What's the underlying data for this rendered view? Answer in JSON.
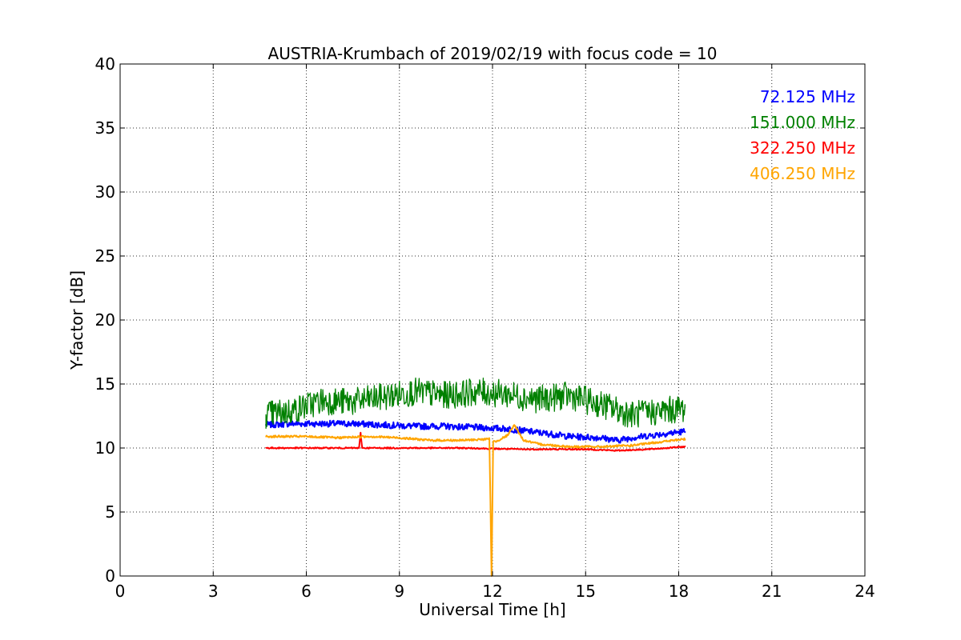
{
  "chart_data": {
    "type": "line",
    "title": "AUSTRIA-Krumbach of 2019/02/19 with focus code = 10",
    "xlabel": "Universal Time [h]",
    "ylabel": "Y-factor [dB]",
    "xlim": [
      0,
      24
    ],
    "ylim": [
      0,
      40
    ],
    "xticks": [
      "0",
      "3",
      "6",
      "9",
      "12",
      "15",
      "18",
      "21",
      "24"
    ],
    "yticks": [
      "0",
      "5",
      "10",
      "15",
      "20",
      "25",
      "30",
      "35",
      "40"
    ],
    "grid": true,
    "legend_position": "top-right",
    "series": [
      {
        "name": "72.125 MHz",
        "color": "#0000ff",
        "x": [
          4.7,
          5.5,
          6.5,
          7.5,
          8.5,
          9.5,
          10.5,
          11.5,
          12.5,
          13.5,
          14.5,
          15.5,
          16.0,
          16.5,
          17.5,
          18.2
        ],
        "values": [
          11.8,
          11.9,
          11.9,
          11.9,
          11.8,
          11.7,
          11.7,
          11.6,
          11.5,
          11.2,
          10.9,
          10.8,
          10.6,
          10.8,
          11.1,
          11.3
        ],
        "noise": 0.25
      },
      {
        "name": "151.000 MHz",
        "color": "#008000",
        "x": [
          4.7,
          5.5,
          6.5,
          7.5,
          8.5,
          9.5,
          10.5,
          11.5,
          12.5,
          13.5,
          14.5,
          15.5,
          16.5,
          17.5,
          18.2
        ],
        "values": [
          12.6,
          12.9,
          13.7,
          13.6,
          14.0,
          14.4,
          14.1,
          14.4,
          14.2,
          13.8,
          14.1,
          13.4,
          12.6,
          12.9,
          13.1
        ],
        "noise": 1.1
      },
      {
        "name": "322.250 MHz",
        "color": "#ff0000",
        "x": [
          4.7,
          6.0,
          7.7,
          7.75,
          7.8,
          9.0,
          11.0,
          13.0,
          15.0,
          16.0,
          17.0,
          18.2
        ],
        "values": [
          10.0,
          10.0,
          10.0,
          11.2,
          10.0,
          10.0,
          10.0,
          9.9,
          9.9,
          9.8,
          9.9,
          10.1
        ],
        "noise": 0.05
      },
      {
        "name": "406.250 MHz",
        "color": "#ffa500",
        "x": [
          4.7,
          6.0,
          7.0,
          8.0,
          9.0,
          10.0,
          11.0,
          11.9,
          11.97,
          12.02,
          12.1,
          12.5,
          12.7,
          13.0,
          13.5,
          14.5,
          15.5,
          16.5,
          17.5,
          18.2
        ],
        "values": [
          10.9,
          10.9,
          10.8,
          10.9,
          10.8,
          10.6,
          10.6,
          10.7,
          0.0,
          10.5,
          10.5,
          11.0,
          11.8,
          10.6,
          10.3,
          10.1,
          10.1,
          10.2,
          10.5,
          10.7
        ],
        "noise": 0.08
      }
    ]
  }
}
